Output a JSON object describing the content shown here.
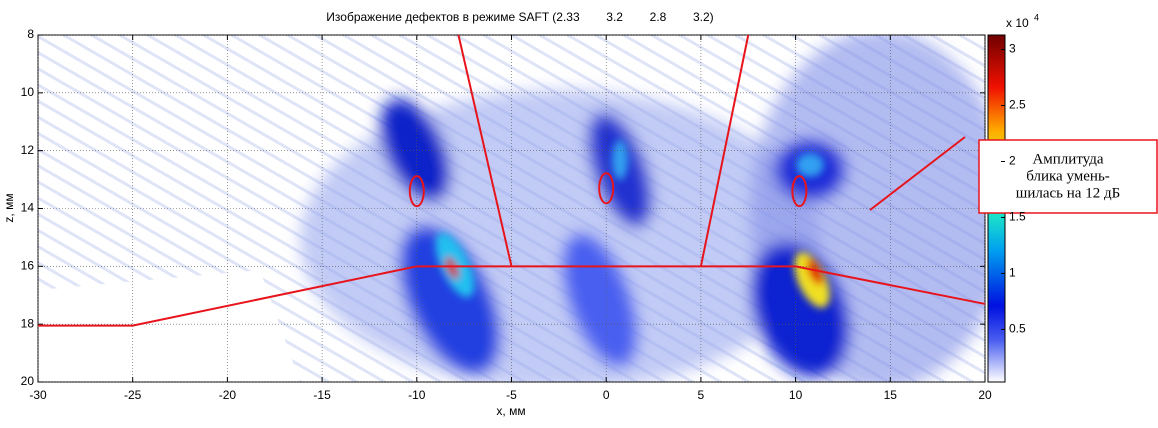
{
  "chart_data": {
    "type": "image",
    "title": "Изображение дефектов в режиме SAFT (2.33        3.2        2.8        3.2)",
    "xlabel": "x, мм",
    "ylabel": "z, мм",
    "xlim": [
      -30,
      20
    ],
    "xticks": [
      -30,
      -25,
      -20,
      -15,
      -10,
      -5,
      0,
      5,
      10,
      15,
      20
    ],
    "ylim": [
      8,
      20
    ],
    "yticks": [
      8,
      10,
      12,
      14,
      16,
      18,
      20
    ],
    "y_reversed": true,
    "grid": true,
    "colorbar": {
      "clim": [
        0.03,
        3.13
      ],
      "ticks": [
        0.5,
        1,
        1.5,
        2,
        2.5,
        3
      ],
      "scale_base": "x 10",
      "scale_exponent": "4"
    },
    "series": [
      {
        "color": "#e8141c",
        "x": [
          -30,
          -25,
          -10,
          10,
          20
        ],
        "values": [
          18.05,
          18.05,
          16,
          16,
          17.3
        ]
      },
      {
        "color": "#e8141c",
        "x": [
          -7.8,
          -5
        ],
        "values": [
          8,
          16
        ]
      },
      {
        "color": "#e8141c",
        "x": [
          7.5,
          5
        ],
        "values": [
          8,
          16
        ]
      }
    ],
    "circles": {
      "color": "#e8141c",
      "x": [
        -10,
        0,
        10.2
      ],
      "values": [
        13.4,
        13.3,
        13.4
      ]
    },
    "annotation": {
      "lines": [
        "Амплитуда",
        "блика умень-",
        "шилась на 12 дБ"
      ]
    }
  }
}
